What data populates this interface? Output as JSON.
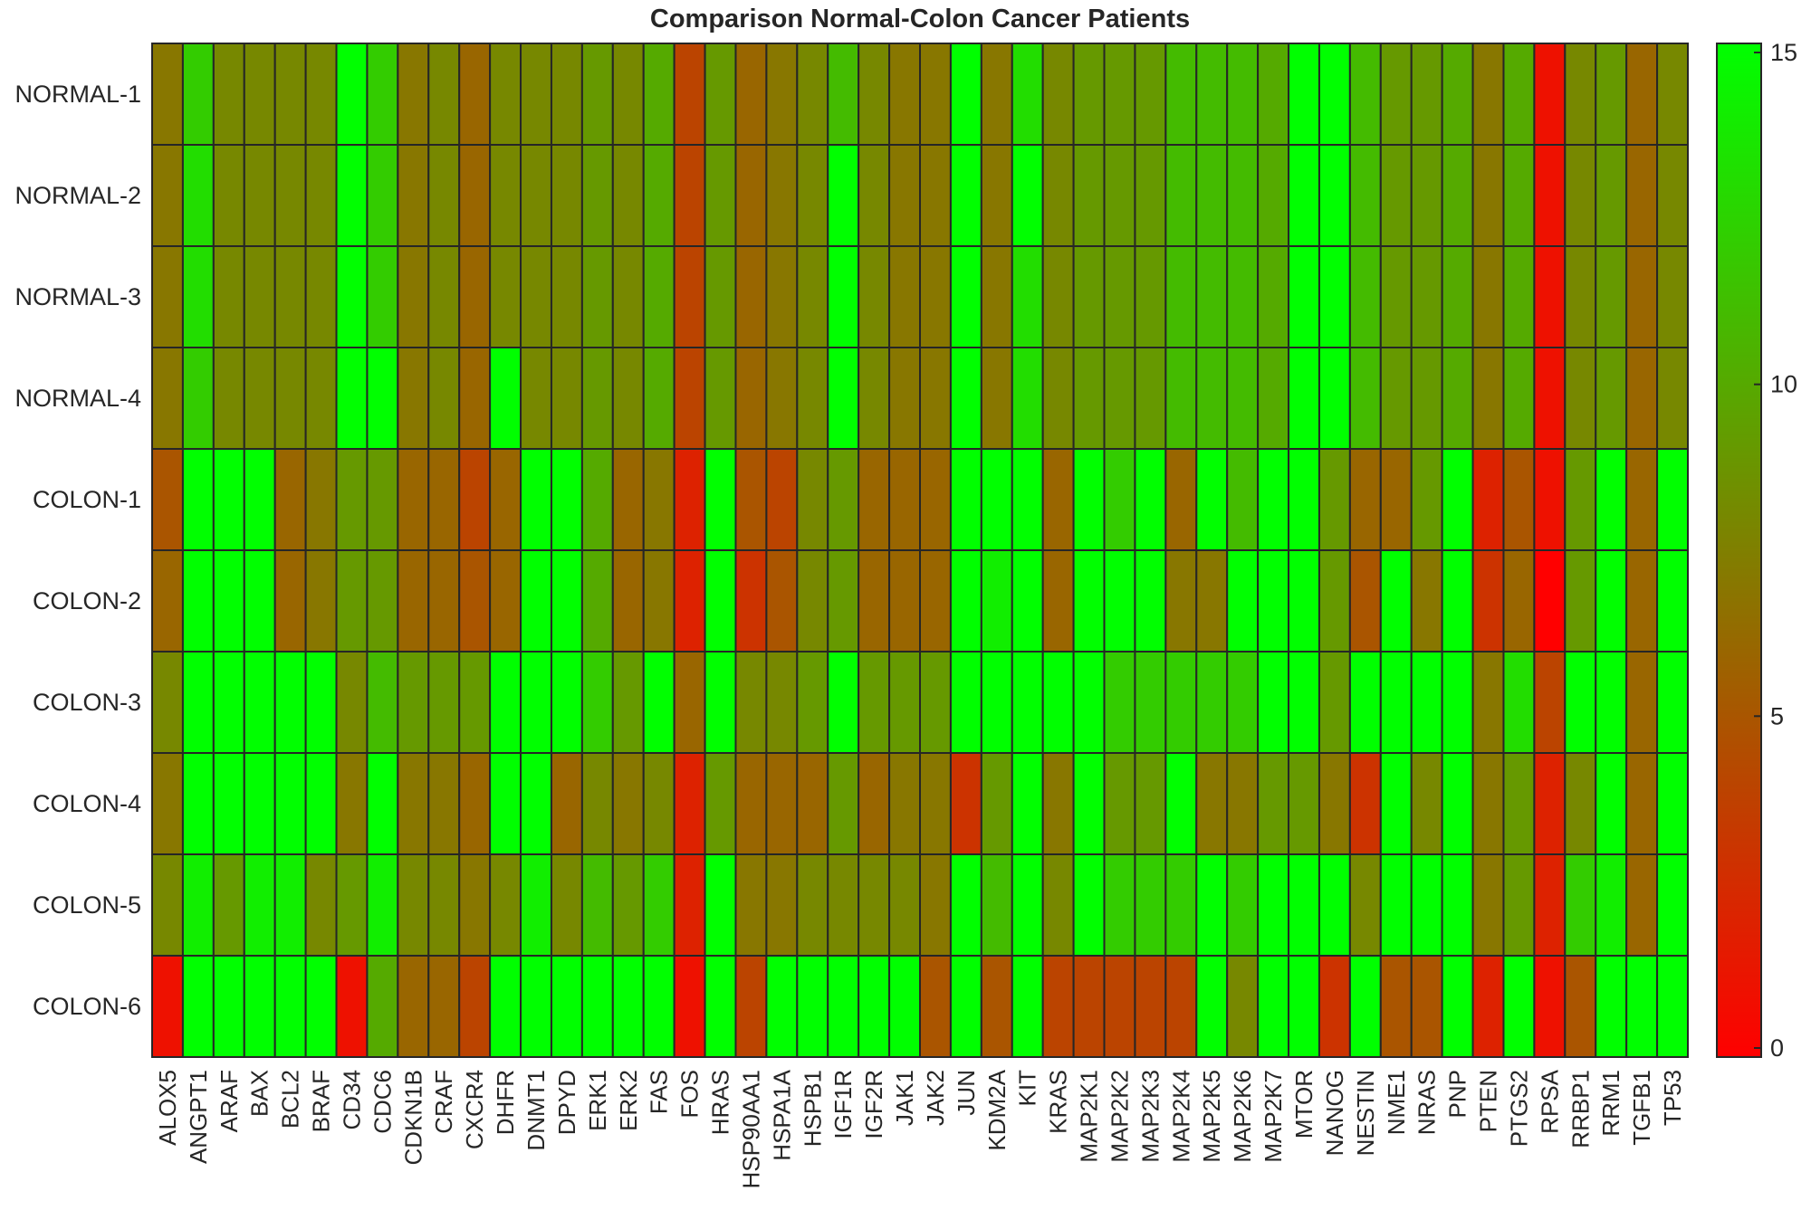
{
  "chart_data": {
    "type": "heatmap",
    "title": "Comparison Normal-Colon Cancer Patients",
    "xlabel": "",
    "ylabel": "",
    "rows": [
      "NORMAL-1",
      "NORMAL-2",
      "NORMAL-3",
      "NORMAL-4",
      "COLON-1",
      "COLON-2",
      "COLON-3",
      "COLON-4",
      "COLON-5",
      "COLON-6"
    ],
    "columns": [
      "ALOX5",
      "ANGPT1",
      "ARAF",
      "BAX",
      "BCL2",
      "BRAF",
      "CD34",
      "CDC6",
      "CDKN1B",
      "CRAF",
      "CXCR4",
      "DHFR",
      "DNMT1",
      "DPYD",
      "ERK1",
      "ERK2",
      "FAS",
      "FOS",
      "HRAS",
      "HSP90AA1",
      "HSPA1A",
      "HSPB1",
      "IGF1R",
      "IGF2R",
      "JAK1",
      "JAK2",
      "JUN",
      "KDM2A",
      "KIT",
      "KRAS",
      "MAP2K1",
      "MAP2K2",
      "MAP2K3",
      "MAP2K4",
      "MAP2K5",
      "MAP2K6",
      "MAP2K7",
      "MTOR",
      "NANOG",
      "NESTIN",
      "NME1",
      "NRAS",
      "PNP",
      "PTEN",
      "PTGS2",
      "RPSA",
      "RRBP1",
      "RRM1",
      "TGFB1",
      "TP53"
    ],
    "values": [
      [
        7,
        12,
        8,
        8,
        8,
        8,
        15,
        12,
        7,
        8,
        6,
        8,
        8,
        8,
        9,
        8,
        10,
        4,
        9,
        6,
        7,
        8,
        11,
        8,
        7,
        7,
        15,
        7,
        13,
        8,
        9,
        9,
        9,
        11,
        11,
        11,
        10,
        15,
        15,
        11,
        9,
        9,
        10,
        7,
        10,
        1,
        8,
        9,
        6,
        8
      ],
      [
        7,
        13,
        8,
        8,
        8,
        8,
        15,
        12,
        7,
        8,
        6,
        8,
        8,
        8,
        9,
        8,
        10,
        4,
        9,
        6,
        7,
        8,
        15,
        8,
        7,
        7,
        15,
        7,
        15,
        8,
        9,
        9,
        9,
        11,
        11,
        11,
        10,
        15,
        15,
        11,
        9,
        9,
        10,
        7,
        10,
        1,
        8,
        9,
        6,
        8
      ],
      [
        7,
        13,
        8,
        8,
        8,
        8,
        15,
        12,
        7,
        8,
        6,
        8,
        8,
        8,
        9,
        8,
        10,
        4,
        9,
        6,
        7,
        8,
        15,
        8,
        7,
        7,
        15,
        7,
        13,
        8,
        9,
        9,
        9,
        11,
        11,
        11,
        10,
        15,
        15,
        11,
        9,
        9,
        10,
        7,
        10,
        1,
        8,
        9,
        6,
        8
      ],
      [
        7,
        12,
        8,
        8,
        8,
        8,
        15,
        15,
        7,
        8,
        6,
        15,
        8,
        8,
        9,
        8,
        10,
        4,
        9,
        6,
        7,
        8,
        15,
        8,
        7,
        7,
        15,
        7,
        13,
        8,
        9,
        9,
        9,
        11,
        11,
        11,
        10,
        15,
        15,
        11,
        9,
        9,
        10,
        7,
        10,
        1,
        8,
        9,
        6,
        8
      ],
      [
        5,
        15,
        15,
        15,
        6,
        7,
        9,
        9,
        6,
        6,
        4,
        6,
        15,
        15,
        10,
        6,
        7,
        2,
        15,
        5,
        4,
        8,
        9,
        6,
        6,
        6,
        15,
        15,
        15,
        6,
        15,
        12,
        15,
        6,
        15,
        11,
        15,
        15,
        9,
        6,
        6,
        9,
        15,
        2,
        5,
        1,
        9,
        15,
        6,
        15
      ],
      [
        6,
        15,
        15,
        15,
        6,
        7,
        9,
        9,
        6,
        6,
        5,
        6,
        15,
        15,
        10,
        6,
        7,
        2,
        15,
        3,
        5,
        8,
        9,
        6,
        6,
        6,
        15,
        14,
        15,
        6,
        15,
        15,
        15,
        7,
        7,
        15,
        15,
        15,
        9,
        5,
        15,
        7,
        15,
        3,
        6,
        0,
        9,
        15,
        6,
        15
      ],
      [
        8,
        15,
        15,
        15,
        15,
        15,
        8,
        11,
        9,
        9,
        9,
        15,
        15,
        15,
        12,
        9,
        15,
        6,
        15,
        8,
        8,
        9,
        15,
        9,
        9,
        9,
        15,
        15,
        15,
        15,
        15,
        12,
        12,
        12,
        12,
        12,
        15,
        15,
        9,
        15,
        15,
        15,
        15,
        7,
        13,
        4,
        15,
        15,
        6,
        15
      ],
      [
        7,
        15,
        15,
        15,
        15,
        15,
        7,
        15,
        7,
        7,
        6,
        15,
        15,
        6,
        8,
        7,
        8,
        2,
        9,
        6,
        6,
        6,
        9,
        6,
        7,
        7,
        3,
        9,
        15,
        7,
        15,
        9,
        9,
        15,
        7,
        7,
        9,
        9,
        7,
        3,
        15,
        8,
        15,
        7,
        9,
        2,
        8,
        15,
        6,
        15
      ],
      [
        8,
        14,
        9,
        14,
        14,
        8,
        9,
        14,
        8,
        8,
        7,
        8,
        14,
        8,
        11,
        9,
        12,
        2,
        15,
        7,
        7,
        8,
        8,
        8,
        8,
        7,
        15,
        11,
        15,
        8,
        15,
        12,
        12,
        12,
        15,
        12,
        15,
        15,
        15,
        8,
        15,
        15,
        15,
        7,
        9,
        2,
        12,
        14,
        6,
        15
      ],
      [
        1,
        15,
        15,
        15,
        15,
        15,
        1,
        10,
        6,
        6,
        4,
        15,
        15,
        15,
        15,
        15,
        15,
        1,
        15,
        4,
        15,
        15,
        15,
        15,
        15,
        5,
        15,
        5,
        15,
        4,
        4,
        4,
        4,
        4,
        15,
        8,
        15,
        15,
        3,
        15,
        5,
        5,
        15,
        2,
        15,
        1,
        5,
        15,
        15,
        15
      ]
    ],
    "zlim": [
      0,
      15
    ],
    "colormap": [
      "#FF0000",
      "#00FF00"
    ],
    "colorbar": {
      "ticks": [
        0,
        5,
        10,
        15
      ],
      "labels": [
        "0",
        "5",
        "10",
        "15"
      ]
    },
    "grid": true
  }
}
